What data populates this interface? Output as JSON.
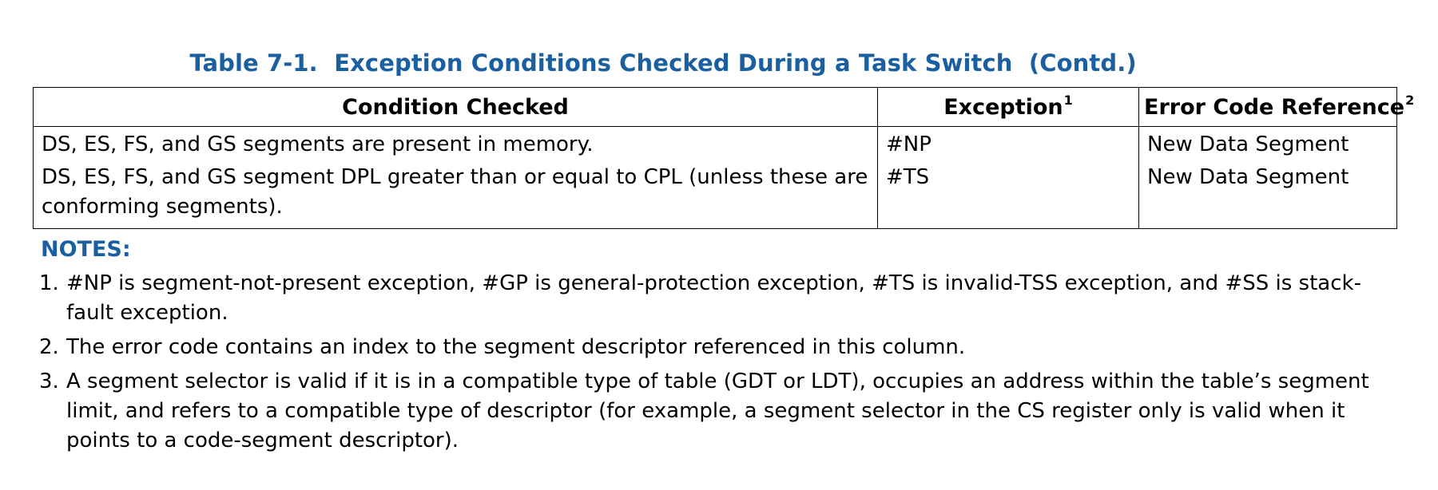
{
  "title": "Table 7-1.  Exception Conditions Checked During a Task Switch  (Contd.)",
  "table": {
    "headers": [
      {
        "label": "Condition Checked",
        "sup": ""
      },
      {
        "label": "Exception",
        "sup": "1"
      },
      {
        "label": "Error Code Reference",
        "sup": "2"
      }
    ],
    "rows": [
      {
        "condition": "DS, ES, FS, and GS segments are present in memory.",
        "exception": "#NP",
        "error_code": "New Data Segment"
      },
      {
        "condition": "DS, ES, FS, and GS segment DPL greater than or equal to CPL (unless these are conforming segments).",
        "exception": "#TS",
        "error_code": "New Data Segment"
      }
    ]
  },
  "notes": {
    "heading": "NOTES:",
    "items": [
      {
        "num": "1.",
        "text": "#NP is segment-not-present exception, #GP is general-protection exception, #TS is invalid-TSS exception, and #SS is stack-fault exception."
      },
      {
        "num": "2.",
        "text": "The error code contains an index to the segment descriptor referenced in this column."
      },
      {
        "num": "3.",
        "text": "A segment selector is valid if it is in a compatible type of table (GDT or LDT), occupies an address within the table’s segment limit, and refers to a compatible type of descriptor (for example, a segment selector in the CS register only is valid when it points to a code-segment descriptor)."
      }
    ]
  }
}
